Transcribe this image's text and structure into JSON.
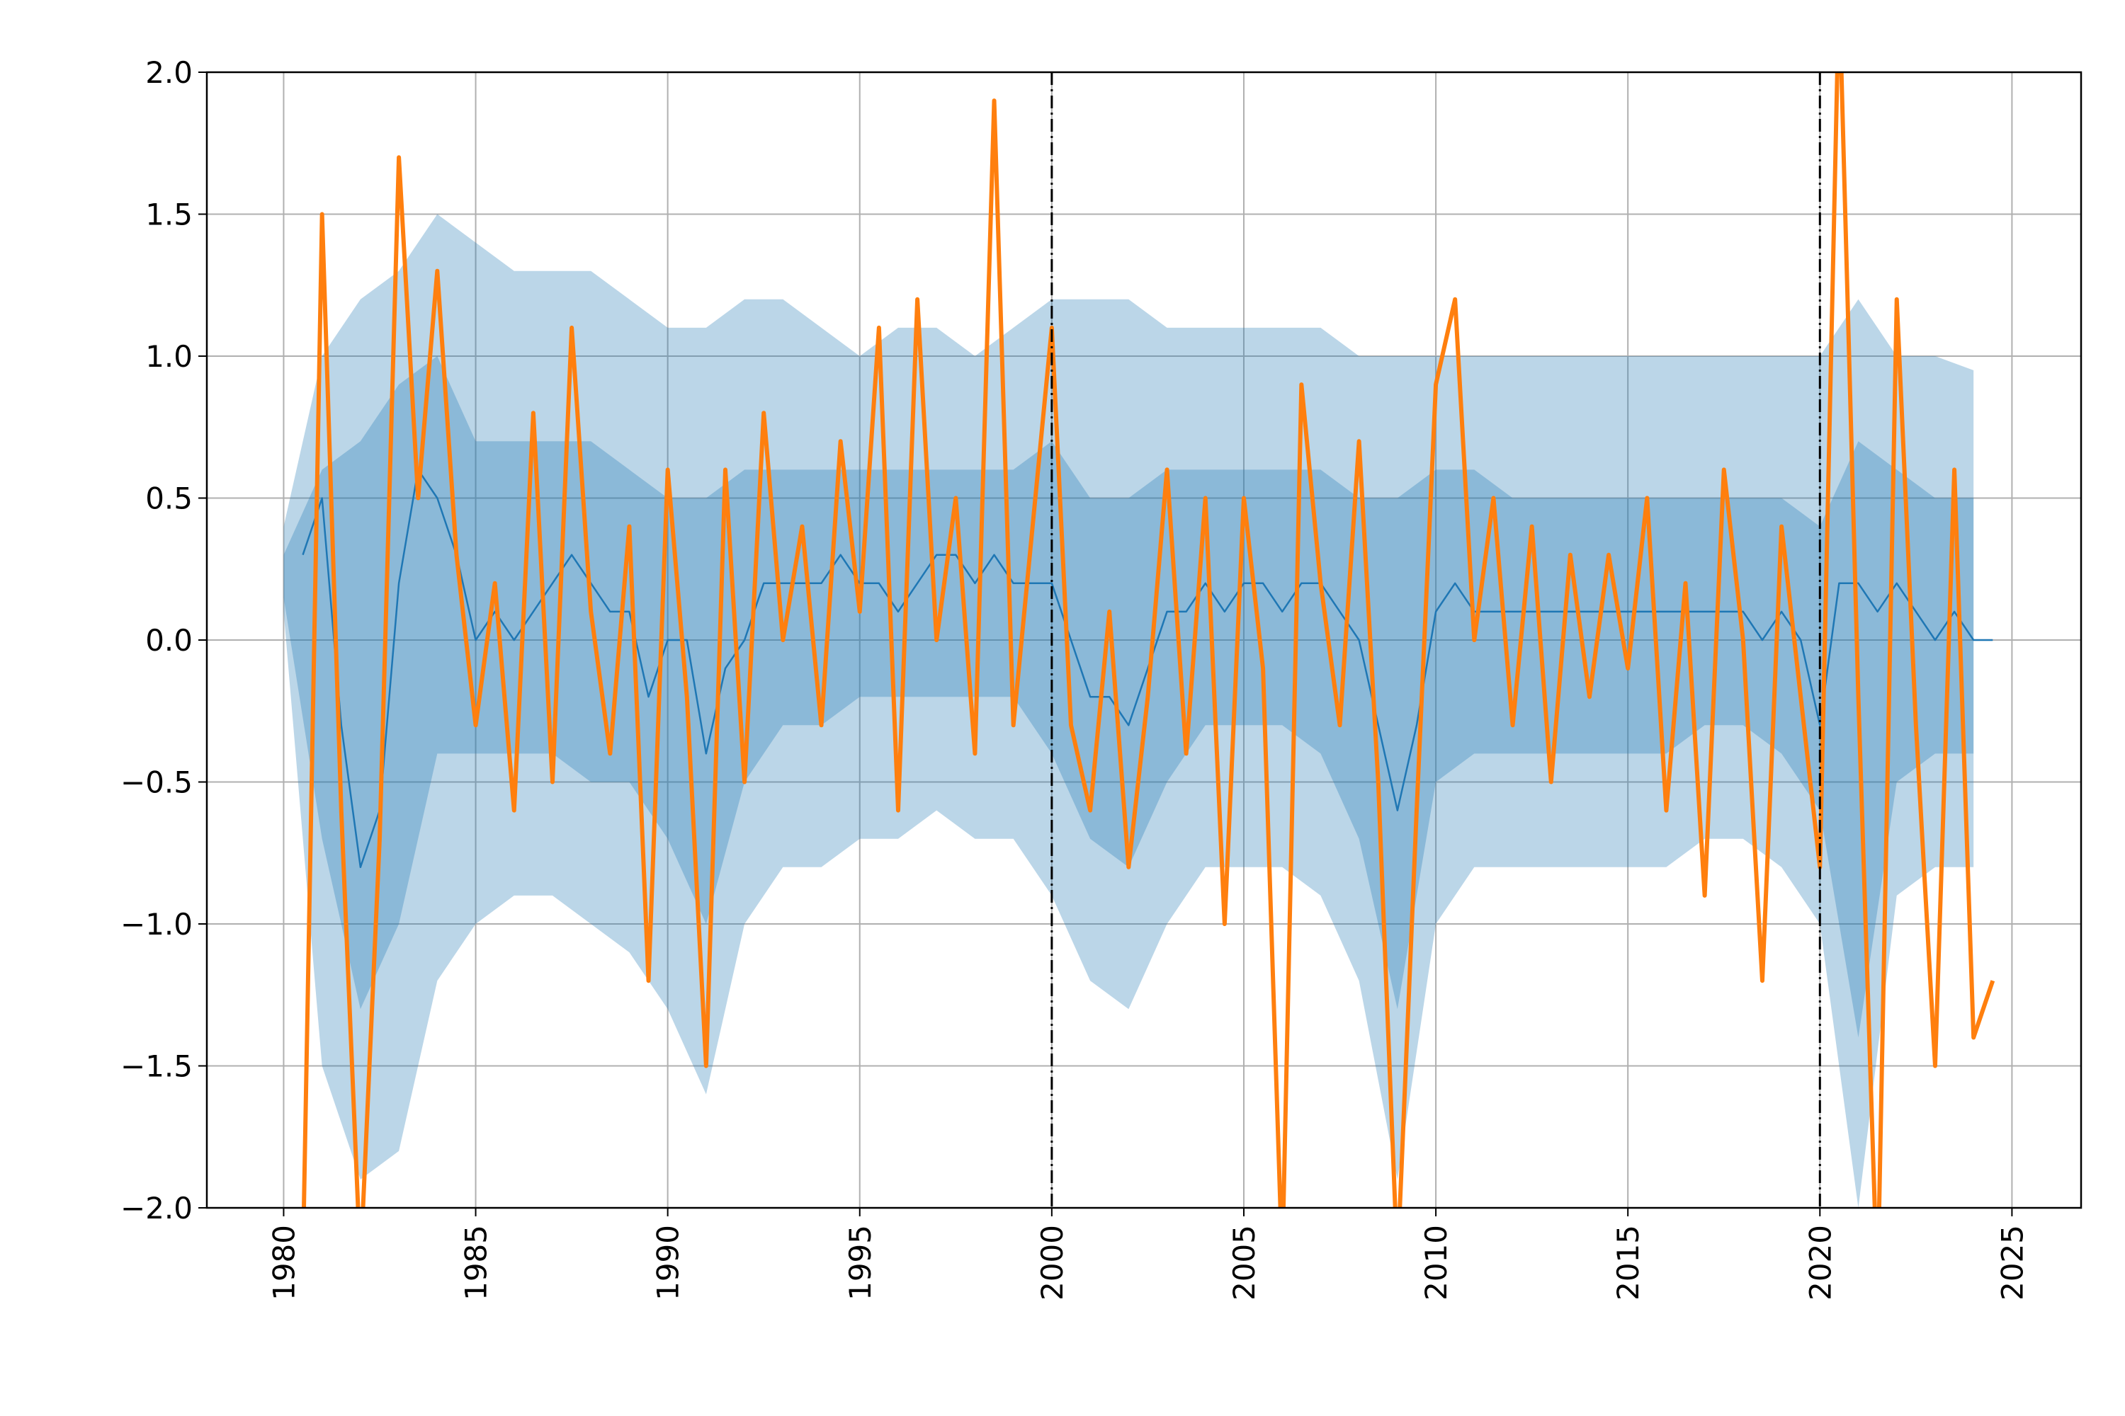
{
  "chart_data": {
    "type": "line",
    "x": [
      1980.5,
      1981,
      1981.5,
      1982,
      1982.5,
      1983,
      1983.5,
      1984,
      1984.5,
      1985,
      1985.5,
      1986,
      1986.5,
      1987,
      1987.5,
      1988,
      1988.5,
      1989,
      1989.5,
      1990,
      1990.5,
      1991,
      1991.5,
      1992,
      1992.5,
      1993,
      1993.5,
      1994,
      1994.5,
      1995,
      1995.5,
      1996,
      1996.5,
      1997,
      1997.5,
      1998,
      1998.5,
      1999,
      1999.5,
      2000,
      2000.5,
      2001,
      2001.5,
      2002,
      2002.5,
      2003,
      2003.5,
      2004,
      2004.5,
      2005,
      2005.5,
      2006,
      2006.5,
      2007,
      2007.5,
      2008,
      2008.5,
      2009,
      2009.5,
      2010,
      2010.5,
      2011,
      2011.5,
      2012,
      2012.5,
      2013,
      2013.5,
      2014,
      2014.5,
      2015,
      2015.5,
      2016,
      2016.5,
      2017,
      2017.5,
      2018,
      2018.5,
      2019,
      2019.5,
      2020,
      2020.5,
      2021,
      2021.5,
      2022,
      2022.5,
      2023,
      2023.5,
      2024,
      2024.5
    ],
    "series": [
      {
        "color": "#1f77b4",
        "values": [
          0.3,
          0.5,
          -0.3,
          -0.8,
          -0.6,
          0.2,
          0.6,
          0.5,
          0.3,
          0.0,
          0.1,
          0.0,
          0.1,
          0.2,
          0.3,
          0.2,
          0.1,
          0.1,
          -0.2,
          0.0,
          0.0,
          -0.4,
          -0.1,
          0.0,
          0.2,
          0.2,
          0.2,
          0.2,
          0.3,
          0.2,
          0.2,
          0.1,
          0.2,
          0.3,
          0.3,
          0.2,
          0.3,
          0.2,
          0.2,
          0.2,
          0.0,
          -0.2,
          -0.2,
          -0.3,
          -0.1,
          0.1,
          0.1,
          0.2,
          0.1,
          0.2,
          0.2,
          0.1,
          0.2,
          0.2,
          0.1,
          0.0,
          -0.3,
          -0.6,
          -0.3,
          0.1,
          0.2,
          0.1,
          0.1,
          0.1,
          0.1,
          0.1,
          0.1,
          0.1,
          0.1,
          0.1,
          0.1,
          0.1,
          0.1,
          0.1,
          0.1,
          0.1,
          0.0,
          0.1,
          0.0,
          -0.3,
          0.2,
          0.2,
          0.1,
          0.2,
          0.1,
          0.0,
          0.1,
          0.0,
          0.0
        ]
      },
      {
        "color": "#ff7f0e",
        "values": [
          -2.2,
          1.5,
          -0.6,
          -2.2,
          -0.7,
          1.7,
          0.5,
          1.3,
          0.3,
          -0.3,
          0.2,
          -0.6,
          0.8,
          -0.5,
          1.1,
          0.1,
          -0.4,
          0.4,
          -1.2,
          0.6,
          -0.2,
          -1.5,
          0.6,
          -0.5,
          0.8,
          0.0,
          0.4,
          -0.3,
          0.7,
          0.1,
          1.1,
          -0.6,
          1.2,
          0.0,
          0.5,
          -0.4,
          1.9,
          -0.3,
          0.4,
          1.1,
          -0.3,
          -0.6,
          0.1,
          -0.8,
          -0.2,
          0.6,
          -0.4,
          0.5,
          -1.0,
          0.5,
          -0.1,
          -2.2,
          0.9,
          0.2,
          -0.3,
          0.7,
          -0.5,
          -2.2,
          -0.6,
          0.9,
          1.2,
          0.0,
          0.5,
          -0.3,
          0.4,
          -0.5,
          0.3,
          -0.2,
          0.3,
          -0.1,
          0.5,
          -0.6,
          0.2,
          -0.9,
          0.6,
          0.0,
          -1.2,
          0.4,
          -0.2,
          -0.8,
          2.3,
          -0.2,
          -2.3,
          1.2,
          -0.3,
          -1.5,
          0.6,
          -1.4,
          -1.2
        ]
      }
    ],
    "bands": {
      "x": [
        1980,
        1981,
        1982,
        1983,
        1984,
        1985,
        1986,
        1987,
        1988,
        1989,
        1990,
        1991,
        1992,
        1993,
        1994,
        1995,
        1996,
        1997,
        1998,
        1999,
        2000,
        2001,
        2002,
        2003,
        2004,
        2005,
        2006,
        2007,
        2008,
        2009,
        2010,
        2011,
        2012,
        2013,
        2014,
        2015,
        2016,
        2017,
        2018,
        2019,
        2020,
        2021,
        2022,
        2023,
        2024
      ],
      "color": "#1f77b4",
      "opacity": 0.3,
      "ranges": [
        {
          "upper": [
            0.4,
            1.0,
            1.2,
            1.3,
            1.5,
            1.4,
            1.3,
            1.3,
            1.3,
            1.2,
            1.1,
            1.1,
            1.2,
            1.2,
            1.1,
            1.0,
            1.1,
            1.1,
            1.0,
            1.1,
            1.2,
            1.2,
            1.2,
            1.1,
            1.1,
            1.1,
            1.1,
            1.1,
            1.0,
            1.0,
            1.0,
            1.0,
            1.0,
            1.0,
            1.0,
            1.0,
            1.0,
            1.0,
            1.0,
            1.0,
            1.0,
            1.2,
            1.0,
            1.0,
            0.95
          ],
          "lower": [
            0.1,
            -1.5,
            -1.9,
            -1.8,
            -1.2,
            -1.0,
            -0.9,
            -0.9,
            -1.0,
            -1.1,
            -1.3,
            -1.6,
            -1.0,
            -0.8,
            -0.8,
            -0.7,
            -0.7,
            -0.6,
            -0.7,
            -0.7,
            -0.9,
            -1.2,
            -1.3,
            -1.0,
            -0.8,
            -0.8,
            -0.8,
            -0.9,
            -1.2,
            -1.9,
            -1.0,
            -0.8,
            -0.8,
            -0.8,
            -0.8,
            -0.8,
            -0.8,
            -0.7,
            -0.7,
            -0.8,
            -1.0,
            -2.0,
            -0.9,
            -0.8,
            -0.8
          ]
        },
        {
          "upper": [
            0.3,
            0.6,
            0.7,
            0.9,
            1.0,
            0.7,
            0.7,
            0.7,
            0.7,
            0.6,
            0.5,
            0.5,
            0.6,
            0.6,
            0.6,
            0.6,
            0.6,
            0.6,
            0.6,
            0.6,
            0.7,
            0.5,
            0.5,
            0.6,
            0.6,
            0.6,
            0.6,
            0.6,
            0.5,
            0.5,
            0.6,
            0.6,
            0.5,
            0.5,
            0.5,
            0.5,
            0.5,
            0.5,
            0.5,
            0.5,
            0.4,
            0.7,
            0.6,
            0.5,
            0.5
          ],
          "lower": [
            0.15,
            -0.7,
            -1.3,
            -1.0,
            -0.4,
            -0.4,
            -0.4,
            -0.4,
            -0.5,
            -0.5,
            -0.7,
            -1.0,
            -0.5,
            -0.3,
            -0.3,
            -0.2,
            -0.2,
            -0.2,
            -0.2,
            -0.2,
            -0.4,
            -0.7,
            -0.8,
            -0.5,
            -0.3,
            -0.3,
            -0.3,
            -0.4,
            -0.7,
            -1.3,
            -0.5,
            -0.4,
            -0.4,
            -0.4,
            -0.4,
            -0.4,
            -0.4,
            -0.3,
            -0.3,
            -0.4,
            -0.6,
            -1.4,
            -0.5,
            -0.4,
            -0.4
          ]
        }
      ]
    },
    "vlines": [
      2000,
      2020
    ],
    "xlim": [
      1978.0,
      2026.8
    ],
    "ylim": [
      -2,
      2
    ],
    "xticks": [
      1980,
      1985,
      1990,
      1995,
      2000,
      2005,
      2010,
      2015,
      2020,
      2025
    ],
    "yticks": [
      {
        "value": -2,
        "label": "−2.0"
      },
      {
        "value": -1.5,
        "label": "−1.5"
      },
      {
        "value": -1,
        "label": "−1.0"
      },
      {
        "value": -0.5,
        "label": "−0.5"
      },
      {
        "value": 0,
        "label": "0.0"
      },
      0.5,
      {
        "value": 1,
        "label": "1.0"
      },
      1.5,
      {
        "value": 2,
        "label": "2.0"
      }
    ],
    "grid": true
  }
}
